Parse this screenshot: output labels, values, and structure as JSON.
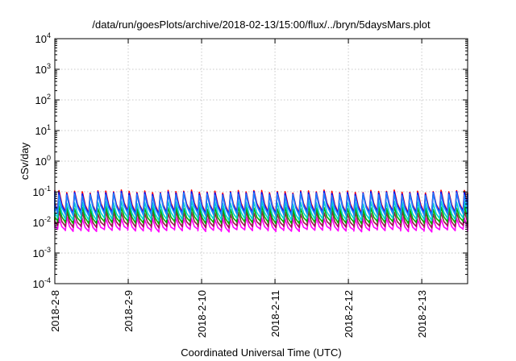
{
  "chart_data": {
    "type": "line",
    "title": "/data/run/goesPlots/archive/2018-02-13/15:00/flux/../bryn/5daysMars.plot",
    "xlabel": "Coordinated Universal Time (UTC)",
    "ylabel": "cSv/day",
    "y_scale": "log",
    "ylim": [
      0.0001,
      10000
    ],
    "y_ticks": [
      {
        "value": 0.0001,
        "base": "10",
        "exp": "-4"
      },
      {
        "value": 0.001,
        "base": "10",
        "exp": "-3"
      },
      {
        "value": 0.01,
        "base": "10",
        "exp": "-2"
      },
      {
        "value": 0.1,
        "base": "10",
        "exp": "-1"
      },
      {
        "value": 1,
        "base": "10",
        "exp": "0"
      },
      {
        "value": 10,
        "base": "10",
        "exp": "1"
      },
      {
        "value": 100,
        "base": "10",
        "exp": "2"
      },
      {
        "value": 1000,
        "base": "10",
        "exp": "3"
      },
      {
        "value": 10000,
        "base": "10",
        "exp": "4"
      }
    ],
    "xlim": [
      "2018-02-08T00:00",
      "2018-02-13T15:00"
    ],
    "x_ticks": [
      "2018-2-8",
      "2018-2-9",
      "2018-2-10",
      "2018-2-11",
      "2018-2-12",
      "2018-2-13"
    ],
    "grid": true,
    "legend": "none",
    "cycle_hours": 2.55,
    "series": [
      {
        "color": "#ff00ff",
        "peak": 0.0135,
        "trough": 0.0058
      },
      {
        "color": "#9b1b4b",
        "peak": 0.021,
        "trough": 0.0078
      },
      {
        "color": "#00b000",
        "peak": 0.03,
        "trough": 0.0105
      },
      {
        "color": "#00d0d0",
        "peak": 0.045,
        "trough": 0.0135
      },
      {
        "color": "#ff0000",
        "peak": 0.102,
        "trough": 0.023
      },
      {
        "color": "#0000ff",
        "peak": 0.092,
        "trough": 0.021
      },
      {
        "color": "#2080ff",
        "peak": 0.082,
        "trough": 0.019
      }
    ]
  }
}
